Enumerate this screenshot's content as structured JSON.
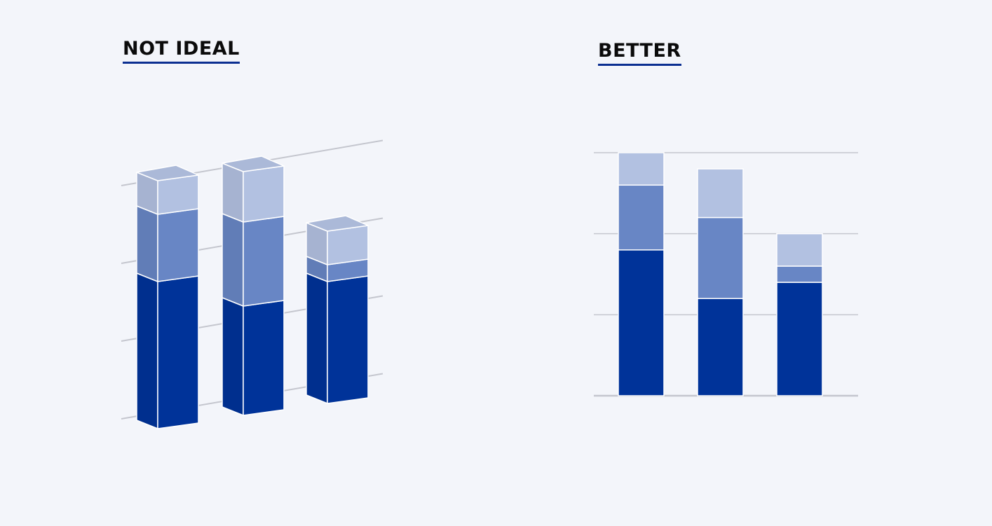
{
  "panels": {
    "left": {
      "title": "NOT IDEAL"
    },
    "right": {
      "title": "BETTER"
    }
  },
  "colors": {
    "background": "#f3f5fa",
    "grid": "#c4c6ce",
    "underline": "#0b2f91",
    "series": [
      "#003399",
      "#6886c5",
      "#b2c1e1"
    ]
  },
  "chart_data": [
    {
      "type": "bar",
      "stacked": true,
      "three_d": true,
      "title": "NOT IDEAL",
      "ylim": [
        0,
        3
      ],
      "grid": true,
      "categories": [
        "",
        "",
        ""
      ],
      "series": [
        {
          "values": [
            1.75,
            1.3,
            1.45
          ]
        },
        {
          "values": [
            0.8,
            1.0,
            0.2
          ]
        },
        {
          "values": [
            0.4,
            0.6,
            0.4
          ]
        }
      ]
    },
    {
      "type": "bar",
      "stacked": true,
      "title": "BETTER",
      "ylim": [
        0,
        3
      ],
      "grid": true,
      "categories": [
        "",
        "",
        ""
      ],
      "series": [
        {
          "values": [
            1.8,
            1.2,
            1.4
          ]
        },
        {
          "values": [
            0.8,
            1.0,
            0.2
          ]
        },
        {
          "values": [
            0.4,
            0.6,
            0.4
          ]
        }
      ]
    }
  ]
}
